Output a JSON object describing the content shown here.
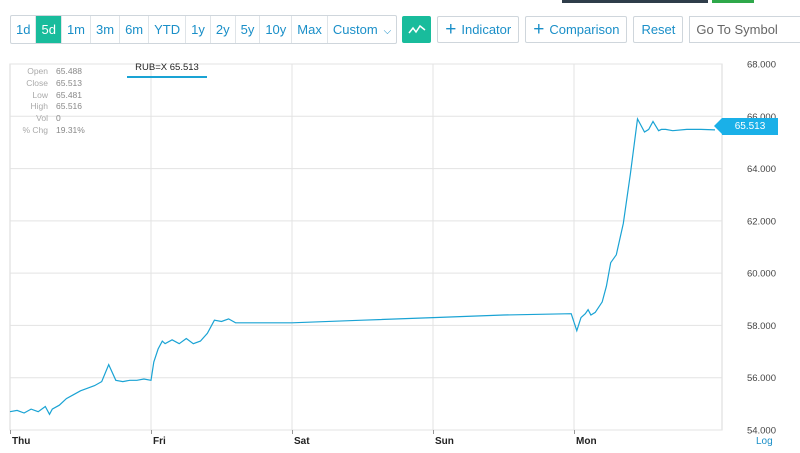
{
  "toolbar": {
    "ranges": [
      "1d",
      "5d",
      "1m",
      "3m",
      "6m",
      "YTD",
      "1y",
      "2y",
      "5y",
      "10y",
      "Max"
    ],
    "active_range": "5d",
    "custom_label": "Custom",
    "chart_type_icon": "line-chart-icon",
    "indicator_label": "Indicator",
    "comparison_label": "Comparison",
    "reset_label": "Reset",
    "goto_placeholder": "Go To Symbol",
    "goto_icon": "arrow-right-icon"
  },
  "ohlc": [
    {
      "label": "Open",
      "value": "65.488"
    },
    {
      "label": "Close",
      "value": "65.513"
    },
    {
      "label": "Low",
      "value": "65.481"
    },
    {
      "label": "High",
      "value": "65.516"
    },
    {
      "label": "Vol",
      "value": "0"
    },
    {
      "label": "% Chg",
      "value": "19.31%"
    }
  ],
  "legend_text": "RUB=X 65.513",
  "last_price_label": "65.513",
  "log_label": "Log",
  "colors": {
    "line": "#1aa3d4",
    "accent": "#19bc9c",
    "tag": "#1ab0e8",
    "grid": "#e3e3e3"
  },
  "chart_data": {
    "type": "line",
    "series": [
      {
        "name": "RUB=X",
        "x": [
          0,
          0.05,
          0.1,
          0.15,
          0.2,
          0.25,
          0.28,
          0.3,
          0.35,
          0.4,
          0.45,
          0.5,
          0.55,
          0.6,
          0.65,
          0.7,
          0.75,
          0.8,
          0.85,
          0.9,
          0.95,
          1.0,
          1.02,
          1.05,
          1.08,
          1.1,
          1.15,
          1.2,
          1.25,
          1.3,
          1.35,
          1.4,
          1.45,
          1.5,
          1.55,
          1.6,
          1.7,
          1.8,
          1.9,
          2.0,
          2.5,
          3.0,
          3.5,
          3.98,
          4.02,
          4.05,
          4.08,
          4.1,
          4.12,
          4.15,
          4.2,
          4.23,
          4.26,
          4.3,
          4.35,
          4.4,
          4.45,
          4.5,
          4.53,
          4.56,
          4.6,
          4.62,
          4.65,
          4.7,
          4.8,
          4.9,
          5.0
        ],
        "y": [
          54.7,
          54.75,
          54.65,
          54.8,
          54.7,
          54.9,
          54.6,
          54.8,
          54.95,
          55.2,
          55.35,
          55.5,
          55.6,
          55.7,
          55.85,
          56.5,
          55.9,
          55.85,
          55.9,
          55.9,
          55.95,
          55.9,
          56.6,
          57.1,
          57.4,
          57.3,
          57.45,
          57.3,
          57.5,
          57.3,
          57.4,
          57.7,
          58.2,
          58.15,
          58.25,
          58.1,
          58.1,
          58.1,
          58.1,
          58.1,
          58.2,
          58.3,
          58.4,
          58.45,
          57.8,
          58.3,
          58.45,
          58.6,
          58.4,
          58.5,
          58.9,
          59.5,
          60.4,
          60.7,
          61.9,
          63.8,
          65.9,
          65.4,
          65.5,
          65.8,
          65.45,
          65.5,
          65.5,
          65.45,
          65.5,
          65.5,
          65.48
        ]
      }
    ],
    "ylim": [
      54.0,
      68.0
    ],
    "yticks": [
      "54.000",
      "56.000",
      "58.000",
      "60.000",
      "62.000",
      "64.000",
      "66.000",
      "68.000"
    ],
    "xticks": [
      "Thu",
      "Fri",
      "Sat",
      "Sun",
      "Mon"
    ],
    "grid": true
  }
}
